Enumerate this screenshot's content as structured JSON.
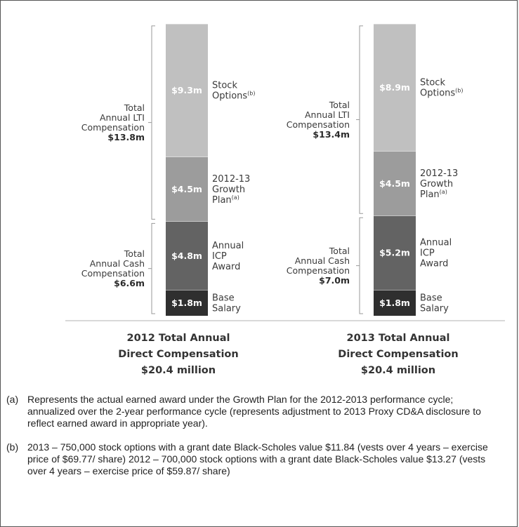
{
  "chart_data": [
    {
      "type": "bar",
      "title": [
        "2012 Total Annual",
        "Direct Compensation",
        "$20.4 million"
      ],
      "unit": "$m",
      "segments": [
        {
          "category": [
            "Base",
            "Salary"
          ],
          "value": 1.8,
          "label": "$1.8m",
          "color": "#2f2f2f"
        },
        {
          "category": [
            "Annual",
            "ICP",
            "Award"
          ],
          "value": 4.8,
          "label": "$4.8m",
          "color": "#636363"
        },
        {
          "category": [
            "2012-13",
            "Growth",
            "Plan"
          ],
          "category_note": "(a)",
          "value": 4.5,
          "label": "$4.5m",
          "color": "#9c9c9c"
        },
        {
          "category": [
            "Stock",
            "Options"
          ],
          "category_note": "(b)",
          "value": 9.3,
          "label": "$9.3m",
          "color": "#c0c0c0"
        }
      ],
      "groups": [
        {
          "lines": [
            "Total",
            "Annual Cash",
            "Compensation"
          ],
          "total": "$6.6m"
        },
        {
          "lines": [
            "Total",
            "Annual LTI",
            "Compensation"
          ],
          "total": "$13.8m"
        }
      ]
    },
    {
      "type": "bar",
      "title": [
        "2013 Total Annual",
        "Direct Compensation",
        "$20.4 million"
      ],
      "unit": "$m",
      "segments": [
        {
          "category": [
            "Base",
            "Salary"
          ],
          "value": 1.8,
          "label": "$1.8m",
          "color": "#2f2f2f"
        },
        {
          "category": [
            "Annual",
            "ICP",
            "Award"
          ],
          "value": 5.2,
          "label": "$5.2m",
          "color": "#636363"
        },
        {
          "category": [
            "2012-13",
            "Growth",
            "Plan"
          ],
          "category_note": "(a)",
          "value": 4.5,
          "label": "$4.5m",
          "color": "#9c9c9c"
        },
        {
          "category": [
            "Stock",
            "Options"
          ],
          "category_note": "(b)",
          "value": 8.9,
          "label": "$8.9m",
          "color": "#c0c0c0"
        }
      ],
      "groups": [
        {
          "lines": [
            "Total",
            "Annual Cash",
            "Compensation"
          ],
          "total": "$7.0m"
        },
        {
          "lines": [
            "Total",
            "Annual LTI",
            "Compensation"
          ],
          "total": "$13.4m"
        }
      ]
    }
  ],
  "notes": [
    {
      "mark": "(a)",
      "text": "Represents the actual earned award under the Growth Plan for the 2012-2013 performance cycle; annualized over the 2-year performance cycle (represents adjustment to 2013 Proxy CD&A disclosure to reflect earned award in appropriate year)."
    },
    {
      "mark": "(b)",
      "text": "2013 – 750,000 stock options with a grant date Black-Scholes value $11.84 (vests over 4 years – exercise price of $69.77/ share) 2012 – 700,000 stock options with a grant date Black-Scholes value $13.27 (vests over 4 years – exercise price of $59.87/ share)"
    }
  ]
}
